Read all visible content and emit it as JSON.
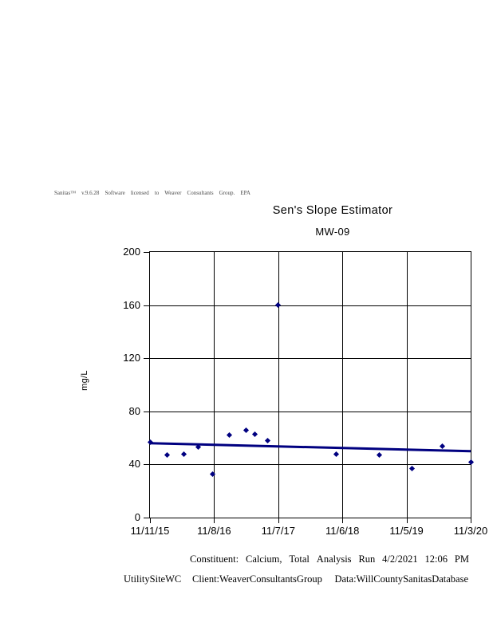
{
  "license": {
    "words": [
      "Sanitas™",
      "v.9.6.28",
      "Software",
      "licensed",
      "to",
      "Weaver",
      "Consultants",
      "Group.",
      "EPA"
    ]
  },
  "chart": {
    "title": "Sen's Slope Estimator",
    "subtitle": "MW-09",
    "ylabel": "mg/L"
  },
  "chart_data": {
    "type": "scatter",
    "title": "Sen's Slope Estimator",
    "subtitle": "MW-09",
    "xlabel": "",
    "ylabel": "mg/L",
    "ylim": [
      0,
      200
    ],
    "y_ticks": [
      0,
      40,
      80,
      120,
      160,
      200
    ],
    "x_tick_labels": [
      "11/11/15",
      "11/8/16",
      "11/7/17",
      "11/6/18",
      "11/5/19",
      "11/3/20"
    ],
    "x_axis_note": "x values are fractional positions on the 0-5 date-tick scale",
    "grid": true,
    "legend": "none",
    "marker_color": "#000080",
    "points": [
      {
        "x": 0.0,
        "y": 57
      },
      {
        "x": 0.27,
        "y": 47
      },
      {
        "x": 0.53,
        "y": 48
      },
      {
        "x": 0.75,
        "y": 53
      },
      {
        "x": 0.98,
        "y": 33
      },
      {
        "x": 1.24,
        "y": 62
      },
      {
        "x": 1.5,
        "y": 66
      },
      {
        "x": 1.64,
        "y": 63
      },
      {
        "x": 1.83,
        "y": 58
      },
      {
        "x": 2.0,
        "y": 160
      },
      {
        "x": 2.9,
        "y": 48
      },
      {
        "x": 3.57,
        "y": 47
      },
      {
        "x": 4.09,
        "y": 37
      },
      {
        "x": 4.56,
        "y": 54
      },
      {
        "x": 5.0,
        "y": 42
      }
    ],
    "trend_line": {
      "name": "Sen's slope line",
      "start": {
        "x": 0,
        "y": 56
      },
      "end": {
        "x": 5,
        "y": 50
      },
      "color": "#000080",
      "width": 3
    }
  },
  "colors": {
    "accent": "#000080",
    "grid": "#000000",
    "text": "#000000",
    "background": "#ffffff"
  },
  "footer": {
    "line1_words": [
      "Constituent:",
      "Calcium,",
      "Total",
      "Analysis",
      "Run",
      "4/2/2021",
      "12:06",
      "PM"
    ],
    "line2": {
      "site": "UtilitySiteWC",
      "client": "Client:WeaverConsultantsGroup",
      "datasource": "Data:WillCountySanitasDatabase"
    }
  }
}
